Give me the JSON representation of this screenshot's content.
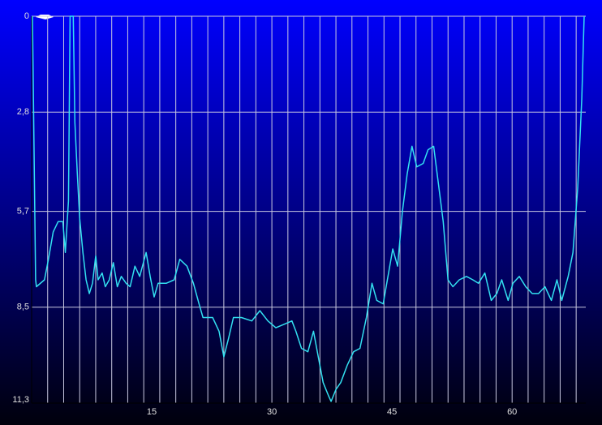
{
  "chart_data": {
    "type": "line",
    "x": [
      0.1,
      0.5,
      0.6,
      1.6,
      2.1,
      2.7,
      3.3,
      3.9,
      4.2,
      4.6,
      4.8,
      5.2,
      5.4,
      5.7,
      6.0,
      6.4,
      6.8,
      7.2,
      7.6,
      8.0,
      8.3,
      8.8,
      9.2,
      9.7,
      10.2,
      10.7,
      11.2,
      11.8,
      12.3,
      12.9,
      13.5,
      14.3,
      14.8,
      15.3,
      15.8,
      16.8,
      17.8,
      18.5,
      19.4,
      20.2,
      20.9,
      21.4,
      22.6,
      23.4,
      24.0,
      24.6,
      25.2,
      26.2,
      27.5,
      28.5,
      29.5,
      30.5,
      31.5,
      32.5,
      33.0,
      33.7,
      34.5,
      35.2,
      35.8,
      36.4,
      37.1,
      37.4,
      38.0,
      38.6,
      39.4,
      40.2,
      41.0,
      41.8,
      42.5,
      43.1,
      43.9,
      44.5,
      45.1,
      45.7,
      46.3,
      46.9,
      47.5,
      48.1,
      48.9,
      49.5,
      50.2,
      50.8,
      51.4,
      52.0,
      52.6,
      53.4,
      54.3,
      55.1,
      55.8,
      56.6,
      57.4,
      58.1,
      58.7,
      59.5,
      60.1,
      60.9,
      61.7,
      62.5,
      63.3,
      64.1,
      64.9,
      65.6,
      66.2,
      67.0,
      67.6,
      68.2,
      68.7,
      69.0
    ],
    "series": [
      {
        "color": "#33e0f0",
        "values": [
          0,
          7.7,
          7.9,
          7.7,
          7.1,
          6.3,
          6.0,
          6.0,
          6.9,
          5.4,
          0,
          0,
          3.1,
          4.6,
          5.9,
          6.9,
          7.7,
          8.1,
          7.8,
          7.0,
          7.7,
          7.5,
          7.9,
          7.7,
          7.2,
          7.9,
          7.6,
          7.8,
          7.9,
          7.3,
          7.6,
          6.9,
          7.6,
          8.2,
          7.8,
          7.8,
          7.7,
          7.1,
          7.3,
          7.8,
          8.4,
          8.8,
          8.8,
          9.2,
          9.95,
          9.4,
          8.8,
          8.8,
          8.9,
          8.6,
          8.9,
          9.1,
          9.0,
          8.9,
          9.2,
          9.7,
          9.8,
          9.2,
          9.95,
          10.7,
          11.1,
          11.25,
          10.9,
          10.7,
          10.2,
          9.8,
          9.7,
          8.8,
          7.8,
          8.3,
          8.4,
          7.6,
          6.8,
          7.3,
          5.7,
          4.6,
          3.8,
          4.4,
          4.3,
          3.9,
          3.8,
          4.9,
          6.0,
          7.7,
          7.9,
          7.7,
          7.6,
          7.7,
          7.8,
          7.5,
          8.3,
          8.1,
          7.7,
          8.3,
          7.8,
          7.6,
          7.9,
          8.1,
          8.1,
          7.9,
          8.3,
          7.7,
          8.3,
          7.6,
          6.9,
          5.0,
          2.4,
          0
        ]
      }
    ],
    "xlim": [
      0,
      69.2
    ],
    "xticks": [
      15,
      30,
      45,
      60
    ],
    "x_gridlines": [
      2,
      4,
      6,
      8,
      10,
      12,
      14,
      16,
      18,
      20,
      22,
      24,
      26,
      28,
      30,
      32,
      34,
      36,
      38,
      40,
      42,
      44,
      46,
      48,
      50,
      52,
      54,
      56,
      58,
      60,
      62,
      64,
      66,
      68
    ],
    "ylim": [
      0,
      11.3
    ],
    "y_inverted": true,
    "yticks": [
      0,
      {
        "value": 2.8,
        "label": "2,8"
      },
      {
        "value": 5.7,
        "label": "5,7"
      },
      {
        "value": 8.5,
        "label": "8,5"
      },
      {
        "value": 11.3,
        "label": "11,3"
      }
    ],
    "grid": true
  }
}
